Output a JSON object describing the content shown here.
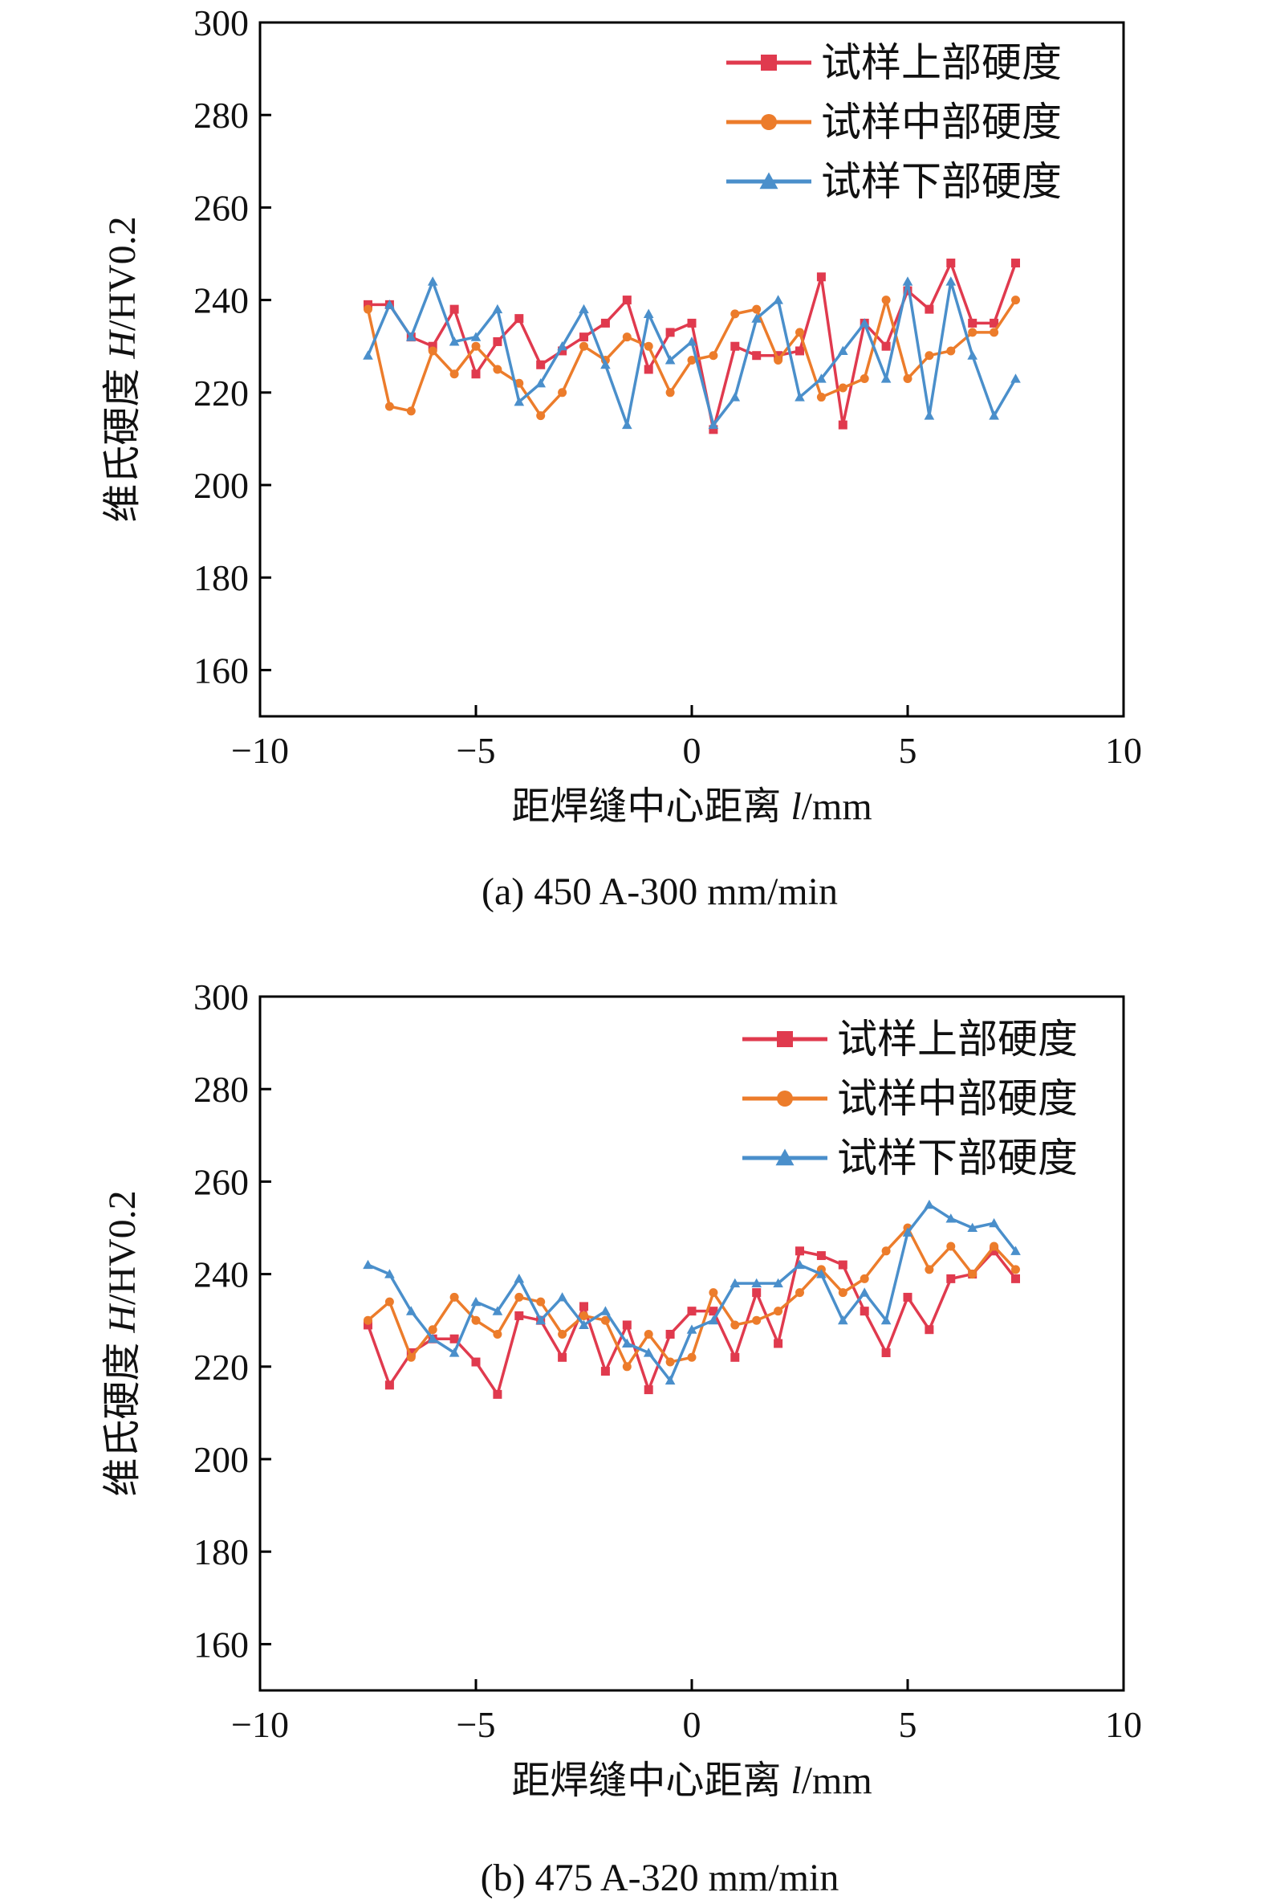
{
  "chart_data": [
    {
      "type": "line",
      "caption": "(a) 450 A-300 mm/min",
      "xlabel_text": "距焊缝中心距离 ",
      "xlabel_var": "l",
      "xlabel_unit": "/mm",
      "ylabel_text": "维氏硬度 ",
      "ylabel_var": "H",
      "ylabel_unit": "/HV0.2",
      "xlim": [
        -10,
        10
      ],
      "ylim": [
        150,
        300
      ],
      "xticks": [
        -10,
        -5,
        0,
        5,
        10
      ],
      "yticks": [
        160,
        180,
        200,
        220,
        240,
        260,
        280,
        300
      ],
      "xtick_labels": [
        "−10",
        "−5",
        "0",
        "5",
        "10"
      ],
      "ytick_labels": [
        "160",
        "180",
        "200",
        "220",
        "240",
        "260",
        "280",
        "300"
      ],
      "legend_position": "top-right",
      "series": [
        {
          "name": "试样上部硬度",
          "color": "#e03a4e",
          "marker": "square",
          "x": [
            -7.5,
            -7,
            -6.5,
            -6,
            -5.5,
            -5,
            -4.5,
            -4,
            -3.5,
            -3,
            -2.5,
            -2,
            -1.5,
            -1,
            -0.5,
            0,
            0.5,
            1,
            1.5,
            2,
            2.5,
            3,
            3.5,
            4,
            4.5,
            5,
            5.5,
            6,
            6.5,
            7,
            7.5
          ],
          "y": [
            239,
            239,
            232,
            230,
            238,
            224,
            231,
            236,
            226,
            229,
            232,
            235,
            240,
            225,
            233,
            235,
            212,
            230,
            228,
            228,
            229,
            245,
            213,
            235,
            230,
            242,
            238,
            248,
            235,
            235,
            248
          ]
        },
        {
          "name": "试样中部硬度",
          "color": "#ec7c2b",
          "marker": "circle",
          "x": [
            -7.5,
            -7,
            -6.5,
            -6,
            -5.5,
            -5,
            -4.5,
            -4,
            -3.5,
            -3,
            -2.5,
            -2,
            -1.5,
            -1,
            -0.5,
            0,
            0.5,
            1,
            1.5,
            2,
            2.5,
            3,
            3.5,
            4,
            4.5,
            5,
            5.5,
            6,
            6.5,
            7,
            7.5
          ],
          "y": [
            238,
            217,
            216,
            229,
            224,
            230,
            225,
            222,
            215,
            220,
            230,
            227,
            232,
            230,
            220,
            227,
            228,
            237,
            238,
            227,
            233,
            219,
            221,
            223,
            240,
            223,
            228,
            229,
            233,
            233,
            240
          ]
        },
        {
          "name": "试样下部硬度",
          "color": "#4a8fcb",
          "marker": "triangle",
          "x": [
            -7.5,
            -7,
            -6.5,
            -6,
            -5.5,
            -5,
            -4.5,
            -4,
            -3.5,
            -3,
            -2.5,
            -2,
            -1.5,
            -1,
            -0.5,
            0,
            0.5,
            1,
            1.5,
            2,
            2.5,
            3,
            3.5,
            4,
            4.5,
            5,
            5.5,
            6,
            6.5,
            7,
            7.5
          ],
          "y": [
            228,
            239,
            232,
            244,
            231,
            232,
            238,
            218,
            222,
            230,
            238,
            226,
            213,
            237,
            227,
            231,
            213,
            219,
            236,
            240,
            219,
            223,
            229,
            235,
            223,
            244,
            215,
            244,
            228,
            215,
            223
          ]
        }
      ]
    },
    {
      "type": "line",
      "caption": "(b) 475 A-320 mm/min",
      "xlabel_text": "距焊缝中心距离 ",
      "xlabel_var": "l",
      "xlabel_unit": "/mm",
      "ylabel_text": "维氏硬度 ",
      "ylabel_var": "H",
      "ylabel_unit": "/HV0.2",
      "xlim": [
        -10,
        10
      ],
      "ylim": [
        150,
        300
      ],
      "xticks": [
        -10,
        -5,
        0,
        5,
        10
      ],
      "yticks": [
        160,
        180,
        200,
        220,
        240,
        260,
        280,
        300
      ],
      "xtick_labels": [
        "−10",
        "−5",
        "0",
        "5",
        "10"
      ],
      "ytick_labels": [
        "160",
        "180",
        "200",
        "220",
        "240",
        "260",
        "280",
        "300"
      ],
      "legend_position": "top-right",
      "series": [
        {
          "name": "试样上部硬度",
          "color": "#e03a4e",
          "marker": "square",
          "x": [
            -7.5,
            -7,
            -6.5,
            -6,
            -5.5,
            -5,
            -4.5,
            -4,
            -3.5,
            -3,
            -2.5,
            -2,
            -1.5,
            -1,
            -0.5,
            0,
            0.5,
            1,
            1.5,
            2,
            2.5,
            3,
            3.5,
            4,
            4.5,
            5,
            5.5,
            6,
            6.5,
            7,
            7.5
          ],
          "y": [
            229,
            216,
            223,
            226,
            226,
            221,
            214,
            231,
            230,
            222,
            233,
            219,
            229,
            215,
            227,
            232,
            232,
            222,
            236,
            225,
            245,
            244,
            242,
            232,
            223,
            235,
            228,
            239,
            240,
            245,
            239
          ]
        },
        {
          "name": "试样中部硬度",
          "color": "#ec7c2b",
          "marker": "circle",
          "x": [
            -7.5,
            -7,
            -6.5,
            -6,
            -5.5,
            -5,
            -4.5,
            -4,
            -3.5,
            -3,
            -2.5,
            -2,
            -1.5,
            -1,
            -0.5,
            0,
            0.5,
            1,
            1.5,
            2,
            2.5,
            3,
            3.5,
            4,
            4.5,
            5,
            5.5,
            6,
            6.5,
            7,
            7.5
          ],
          "y": [
            230,
            234,
            222,
            228,
            235,
            230,
            227,
            235,
            234,
            227,
            231,
            230,
            220,
            227,
            221,
            222,
            236,
            229,
            230,
            232,
            236,
            241,
            236,
            239,
            245,
            250,
            241,
            246,
            240,
            246,
            241
          ]
        },
        {
          "name": "试样下部硬度",
          "color": "#4a8fcb",
          "marker": "triangle",
          "x": [
            -7.5,
            -7,
            -6.5,
            -6,
            -5.5,
            -5,
            -4.5,
            -4,
            -3.5,
            -3,
            -2.5,
            -2,
            -1.5,
            -1,
            -0.5,
            0,
            0.5,
            1,
            1.5,
            2,
            2.5,
            3,
            3.5,
            4,
            4.5,
            5,
            5.5,
            6,
            6.5,
            7,
            7.5
          ],
          "y": [
            242,
            240,
            232,
            226,
            223,
            234,
            232,
            239,
            230,
            235,
            229,
            232,
            225,
            223,
            217,
            228,
            230,
            238,
            238,
            238,
            242,
            240,
            230,
            236,
            230,
            249,
            255,
            252,
            250,
            251,
            245
          ]
        }
      ]
    }
  ]
}
